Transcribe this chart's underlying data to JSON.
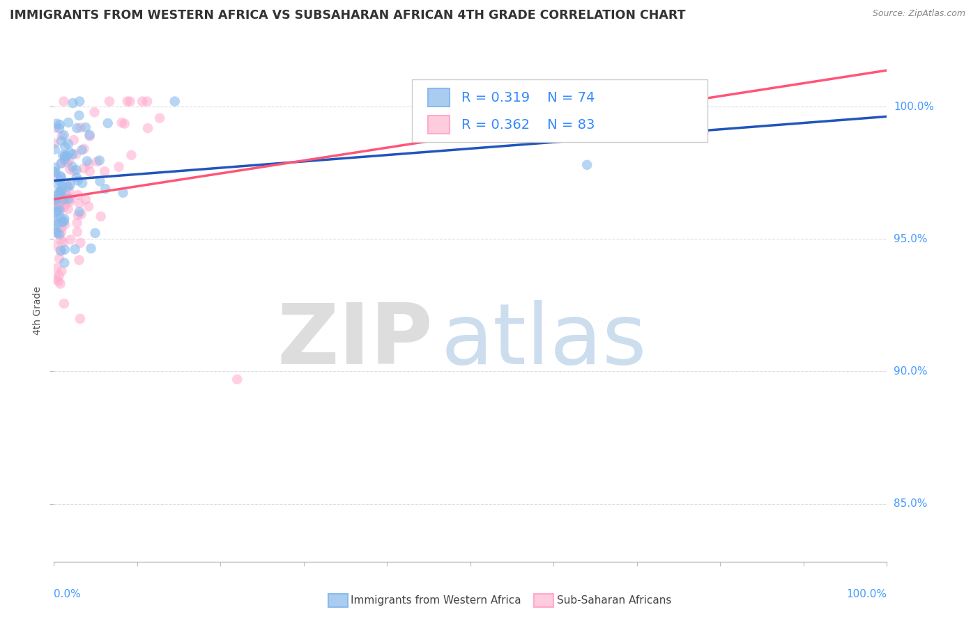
{
  "title": "IMMIGRANTS FROM WESTERN AFRICA VS SUBSAHARAN AFRICAN 4TH GRADE CORRELATION CHART",
  "source": "Source: ZipAtlas.com",
  "ylabel": "4th Grade",
  "ytick_labels": [
    "85.0%",
    "90.0%",
    "95.0%",
    "100.0%"
  ],
  "ytick_values": [
    0.85,
    0.9,
    0.95,
    1.0
  ],
  "xlim": [
    0.0,
    1.0
  ],
  "ylim": [
    0.828,
    1.018
  ],
  "legend_entries": [
    "Immigrants from Western Africa",
    "Sub-Saharan Africans"
  ],
  "legend_r": [
    0.319,
    0.362
  ],
  "legend_n": [
    74,
    83
  ],
  "blue_scatter_color": "#88BBEE",
  "pink_scatter_color": "#FFAACC",
  "blue_legend_fill": "#AACCEE",
  "pink_legend_fill": "#FFCCDD",
  "blue_line_color": "#2255BB",
  "pink_line_color": "#FF5577",
  "legend_text_color": "#3388FF",
  "ytick_color": "#4499FF",
  "xtick_color": "#4499FF",
  "title_color": "#333333",
  "source_color": "#888888",
  "ylabel_color": "#555555",
  "grid_color": "#DDDDDD",
  "watermark_zip_color": "#DDDDDD",
  "watermark_atlas_color": "#CCDDEE"
}
